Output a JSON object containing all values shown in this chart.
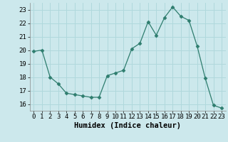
{
  "x": [
    0,
    1,
    2,
    3,
    4,
    5,
    6,
    7,
    8,
    9,
    10,
    11,
    12,
    13,
    14,
    15,
    16,
    17,
    18,
    19,
    20,
    21,
    22,
    23
  ],
  "y": [
    19.9,
    20.0,
    18.0,
    17.5,
    16.8,
    16.7,
    16.6,
    16.5,
    16.5,
    18.1,
    18.3,
    18.5,
    20.1,
    20.5,
    22.1,
    21.1,
    22.4,
    23.2,
    22.5,
    22.2,
    20.3,
    17.9,
    15.9,
    15.7
  ],
  "line_color": "#2e7d6e",
  "marker": "D",
  "marker_size": 2.5,
  "bg_color": "#cce8ec",
  "grid_color": "#b0d8dc",
  "xlabel": "Humidex (Indice chaleur)",
  "ylim": [
    15.5,
    23.5
  ],
  "xlim": [
    -0.5,
    23.5
  ],
  "yticks": [
    16,
    17,
    18,
    19,
    20,
    21,
    22,
    23
  ],
  "xticks": [
    0,
    1,
    2,
    3,
    4,
    5,
    6,
    7,
    8,
    9,
    10,
    11,
    12,
    13,
    14,
    15,
    16,
    17,
    18,
    19,
    20,
    21,
    22,
    23
  ],
  "label_fontsize": 7.5,
  "tick_fontsize": 6.5
}
